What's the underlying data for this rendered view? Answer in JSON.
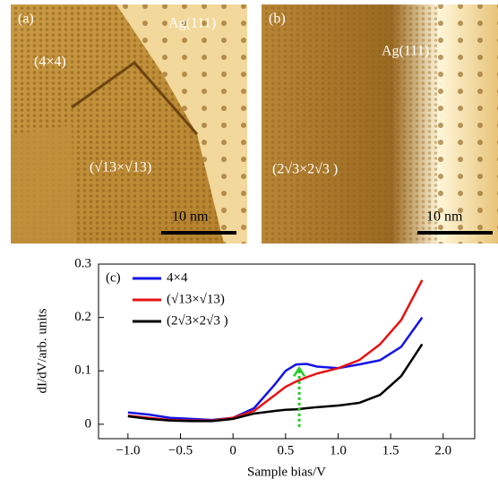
{
  "panels": [
    {
      "label": "(a)",
      "texts": [
        "Ag(111)",
        "(4×4)",
        "(√13×√13)"
      ],
      "scale": "10 nm"
    },
    {
      "label": "(b)",
      "texts": [
        "Ag(111)",
        "(2√3×2√3 )"
      ],
      "scale": "10 nm"
    }
  ],
  "chart_data": {
    "type": "line",
    "panel_label": "(c)",
    "x_label": "Sample bias/V",
    "y_label": "dI/dV/arb. units",
    "x": [
      -1.0,
      -0.8,
      -0.6,
      -0.4,
      -0.2,
      0,
      0.2,
      0.4,
      0.5,
      0.6,
      0.7,
      0.8,
      1.0,
      1.2,
      1.4,
      1.6,
      1.8
    ],
    "series": [
      {
        "name": "4×4",
        "color": "#1414e6",
        "values": [
          0.022,
          0.018,
          0.012,
          0.01,
          0.008,
          0.012,
          0.03,
          0.075,
          0.1,
          0.112,
          0.113,
          0.108,
          0.105,
          0.112,
          0.12,
          0.145,
          0.2
        ]
      },
      {
        "name": "(√13×√13)",
        "color": "#e61414",
        "values": [
          0.016,
          0.012,
          0.008,
          0.007,
          0.007,
          0.012,
          0.025,
          0.055,
          0.07,
          0.08,
          0.088,
          0.095,
          0.105,
          0.12,
          0.15,
          0.195,
          0.27
        ]
      },
      {
        "name": "(2√3×2√3 )",
        "color": "#000000",
        "values": [
          0.015,
          0.01,
          0.007,
          0.006,
          0.006,
          0.01,
          0.02,
          0.025,
          0.027,
          0.028,
          0.03,
          0.032,
          0.035,
          0.04,
          0.055,
          0.09,
          0.15
        ]
      }
    ],
    "arrow": {
      "color": "#22cc22",
      "x": 0.63,
      "y": [
        -0.005,
        0.105
      ]
    },
    "xlim": [
      -1.28,
      2.3
    ],
    "ylim": [
      -0.027,
      0.3
    ],
    "xticks": [
      {
        "value": -1.0,
        "label": "−1.0"
      },
      {
        "value": -0.5,
        "label": "−0.5"
      },
      0,
      {
        "value": 0.5,
        "label": "0.5"
      },
      {
        "value": 1.0,
        "label": "1.0"
      },
      {
        "value": 1.5,
        "label": "1.5"
      },
      {
        "value": 2.0,
        "label": "2.0"
      }
    ],
    "yticks": [
      0,
      0.1,
      0.2,
      0.3
    ]
  }
}
